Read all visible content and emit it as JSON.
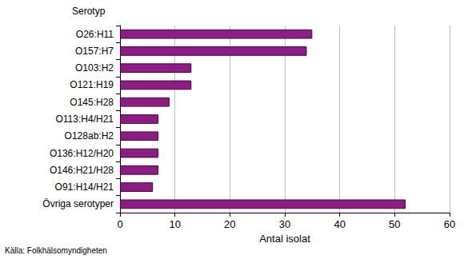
{
  "chart_data": {
    "type": "bar",
    "orientation": "horizontal",
    "y_label": "Serotyp",
    "x_label": "Antal isolat",
    "annotations": [
      "Källa: Folkhälsomyndigheten"
    ],
    "categories": [
      "O26:H11",
      "O157:H7",
      "O103:H2",
      "O121:H19",
      "O145:H28",
      "O113:H4/H21",
      "O128ab:H2",
      "O136:H12/H20",
      "O146:H21/H28",
      "O91:H14/H21",
      "Övriga serotyper"
    ],
    "values": [
      35,
      34,
      13,
      13,
      9,
      7,
      7,
      7,
      7,
      6,
      52
    ],
    "color": "#8e1c84",
    "xlim": [
      0,
      60
    ],
    "xticks": [
      0,
      10,
      20,
      30,
      40,
      50,
      60
    ],
    "grid": true
  }
}
